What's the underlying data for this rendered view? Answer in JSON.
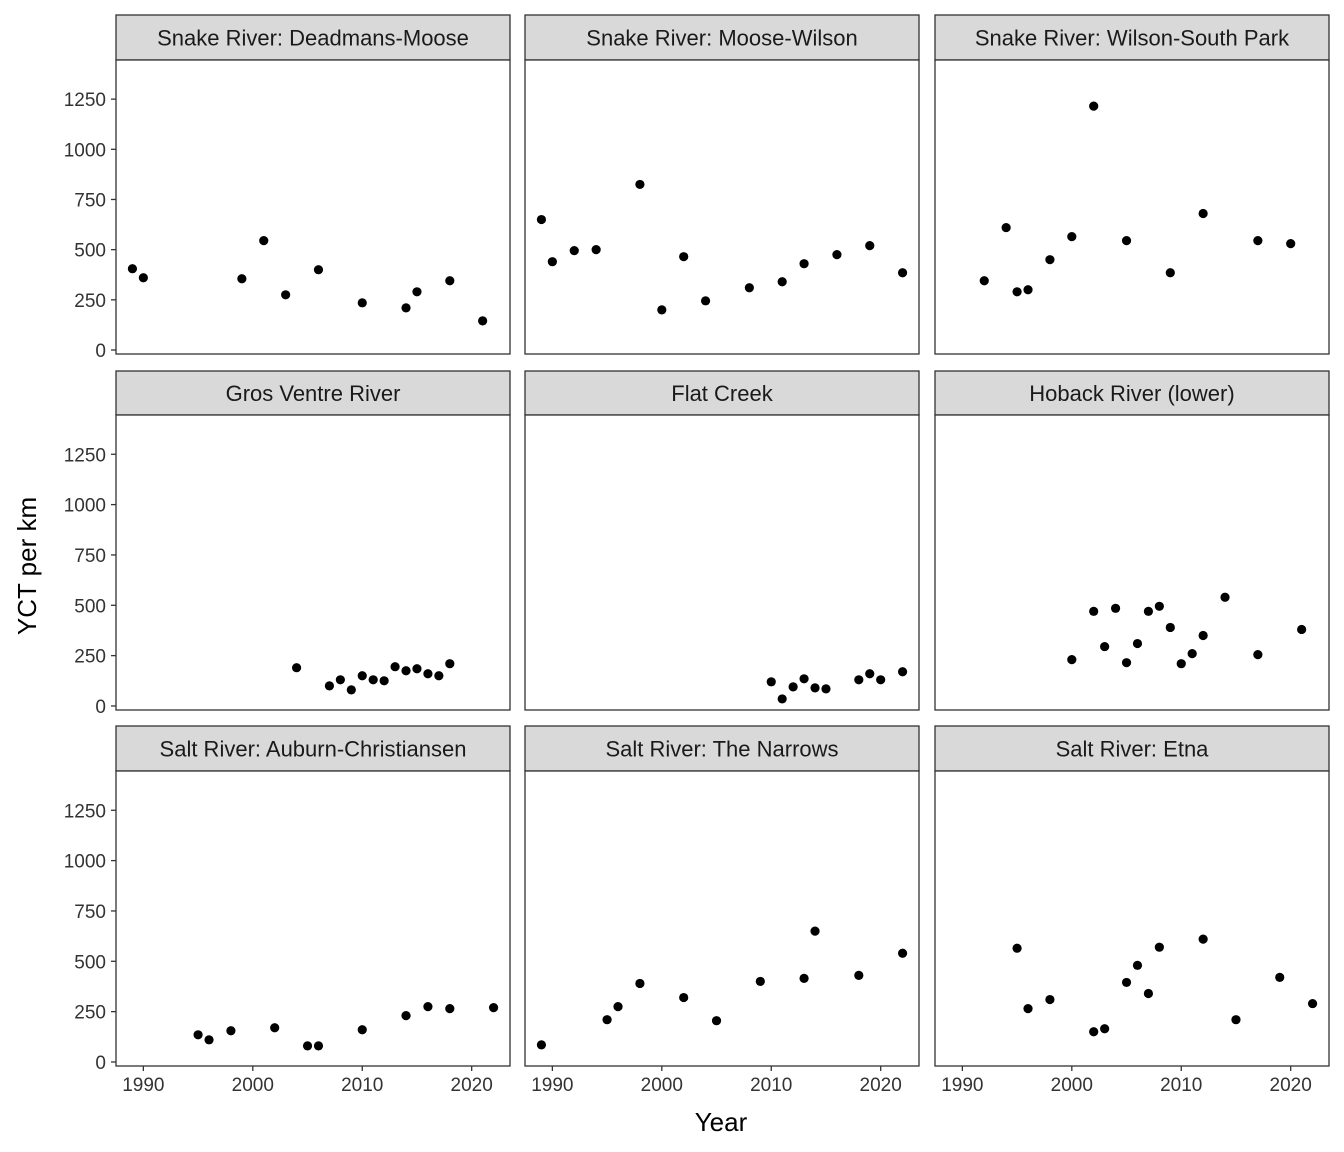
{
  "chart_data": {
    "type": "scatter",
    "xlabel": "Year",
    "ylabel": "YCT per km",
    "xlim": [
      1987.5,
      2023.5
    ],
    "ylim": [
      -20,
      1445
    ],
    "x_ticks": [
      1990,
      2000,
      2010,
      2020
    ],
    "y_ticks": [
      0,
      250,
      500,
      750,
      1000,
      1250
    ],
    "point_color": "#000000",
    "strip_fill": "#d9d9d9",
    "facets": [
      {
        "title": "Snake River: Deadmans-Moose",
        "points": [
          [
            1989,
            405
          ],
          [
            1990,
            360
          ],
          [
            1999,
            355
          ],
          [
            2001,
            545
          ],
          [
            2003,
            275
          ],
          [
            2006,
            400
          ],
          [
            2010,
            235
          ],
          [
            2014,
            210
          ],
          [
            2015,
            290
          ],
          [
            2018,
            345
          ],
          [
            2021,
            145
          ]
        ]
      },
      {
        "title": "Snake River: Moose-Wilson",
        "points": [
          [
            1989,
            650
          ],
          [
            1990,
            440
          ],
          [
            1992,
            495
          ],
          [
            1994,
            500
          ],
          [
            1998,
            825
          ],
          [
            2000,
            200
          ],
          [
            2002,
            465
          ],
          [
            2004,
            245
          ],
          [
            2008,
            310
          ],
          [
            2011,
            340
          ],
          [
            2013,
            430
          ],
          [
            2016,
            475
          ],
          [
            2019,
            520
          ],
          [
            2022,
            385
          ]
        ]
      },
      {
        "title": "Snake River: Wilson-South Park",
        "points": [
          [
            1992,
            345
          ],
          [
            1994,
            610
          ],
          [
            1995,
            290
          ],
          [
            1996,
            300
          ],
          [
            1998,
            450
          ],
          [
            2000,
            565
          ],
          [
            2002,
            1215
          ],
          [
            2005,
            545
          ],
          [
            2009,
            385
          ],
          [
            2012,
            680
          ],
          [
            2017,
            545
          ],
          [
            2020,
            530
          ]
        ]
      },
      {
        "title": "Gros Ventre River",
        "points": [
          [
            2004,
            190
          ],
          [
            2007,
            100
          ],
          [
            2008,
            130
          ],
          [
            2009,
            80
          ],
          [
            2010,
            150
          ],
          [
            2011,
            130
          ],
          [
            2012,
            125
          ],
          [
            2013,
            195
          ],
          [
            2014,
            175
          ],
          [
            2015,
            185
          ],
          [
            2016,
            160
          ],
          [
            2017,
            150
          ],
          [
            2018,
            210
          ]
        ]
      },
      {
        "title": "Flat Creek",
        "points": [
          [
            2010,
            120
          ],
          [
            2011,
            35
          ],
          [
            2012,
            95
          ],
          [
            2013,
            135
          ],
          [
            2014,
            90
          ],
          [
            2015,
            85
          ],
          [
            2018,
            130
          ],
          [
            2019,
            160
          ],
          [
            2020,
            130
          ],
          [
            2022,
            170
          ]
        ]
      },
      {
        "title": "Hoback River (lower)",
        "points": [
          [
            2000,
            230
          ],
          [
            2002,
            470
          ],
          [
            2003,
            295
          ],
          [
            2004,
            485
          ],
          [
            2005,
            215
          ],
          [
            2006,
            310
          ],
          [
            2007,
            470
          ],
          [
            2008,
            495
          ],
          [
            2009,
            390
          ],
          [
            2010,
            210
          ],
          [
            2011,
            260
          ],
          [
            2012,
            350
          ],
          [
            2014,
            540
          ],
          [
            2017,
            255
          ],
          [
            2021,
            380
          ]
        ]
      },
      {
        "title": "Salt River: Auburn-Christiansen",
        "points": [
          [
            1995,
            135
          ],
          [
            1996,
            110
          ],
          [
            1998,
            155
          ],
          [
            2002,
            170
          ],
          [
            2005,
            80
          ],
          [
            2006,
            80
          ],
          [
            2010,
            160
          ],
          [
            2014,
            230
          ],
          [
            2016,
            275
          ],
          [
            2018,
            265
          ],
          [
            2022,
            270
          ]
        ]
      },
      {
        "title": "Salt River: The Narrows",
        "points": [
          [
            1989,
            85
          ],
          [
            1995,
            210
          ],
          [
            1996,
            275
          ],
          [
            1998,
            390
          ],
          [
            2002,
            320
          ],
          [
            2005,
            205
          ],
          [
            2009,
            400
          ],
          [
            2013,
            415
          ],
          [
            2014,
            650
          ],
          [
            2018,
            430
          ],
          [
            2022,
            540
          ]
        ]
      },
      {
        "title": "Salt River: Etna",
        "points": [
          [
            1995,
            565
          ],
          [
            1996,
            265
          ],
          [
            1998,
            310
          ],
          [
            2002,
            150
          ],
          [
            2003,
            165
          ],
          [
            2005,
            395
          ],
          [
            2006,
            480
          ],
          [
            2007,
            340
          ],
          [
            2008,
            570
          ],
          [
            2012,
            610
          ],
          [
            2015,
            210
          ],
          [
            2019,
            420
          ],
          [
            2022,
            290
          ]
        ]
      }
    ]
  }
}
